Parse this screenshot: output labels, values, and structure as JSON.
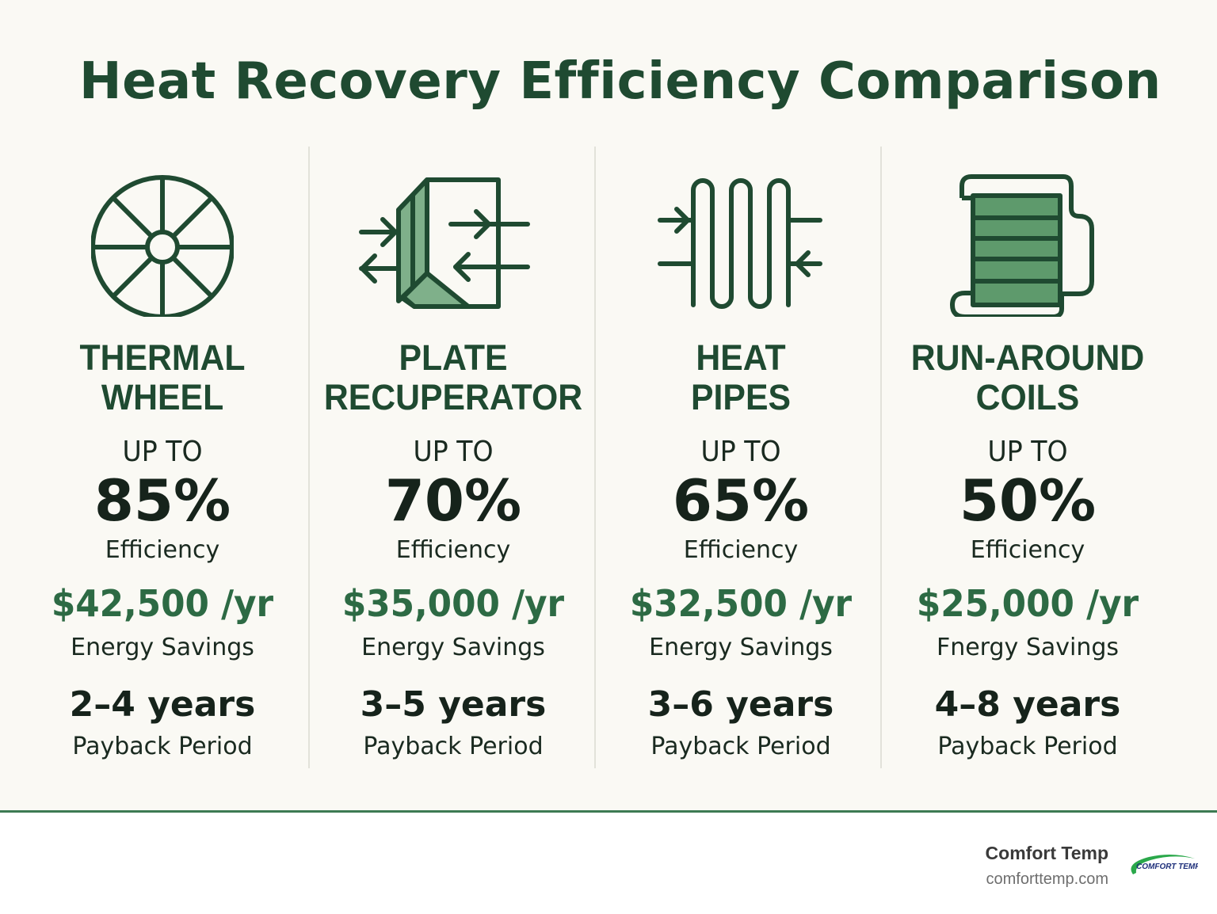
{
  "title": "Heat Recovery Efficiency Comparison",
  "colors": {
    "primary_green": "#1f4a31",
    "accent_green": "#2d6a44",
    "fill_green": "#6fa77a",
    "background": "#faf9f4"
  },
  "columns": [
    {
      "icon": "thermal-wheel-icon",
      "name_line1": "THERMAL",
      "name_line2": "WHEEL",
      "up_to": "UP TO",
      "efficiency": "85%",
      "efficiency_label": "Efficiency",
      "savings": "$42,500 /yr",
      "savings_label": "Energy Savings",
      "payback": "2–4 years",
      "payback_label": "Payback Period"
    },
    {
      "icon": "plate-recuperator-icon",
      "name_line1": "PLATE",
      "name_line2": "RECUPERATOR",
      "up_to": "UP TO",
      "efficiency": "70%",
      "efficiency_label": "Efficiency",
      "savings": "$35,000 /yr",
      "savings_label": "Energy Savings",
      "payback": "3–5 years",
      "payback_label": "Payback Period"
    },
    {
      "icon": "heat-pipes-icon",
      "name_line1": "HEAT",
      "name_line2": "PIPES",
      "up_to": "UP TO",
      "efficiency": "65%",
      "efficiency_label": "Efficiency",
      "savings": "$32,500 /yr",
      "savings_label": "Energy Savings",
      "payback": "3–6 years",
      "payback_label": "Payback Period"
    },
    {
      "icon": "run-around-coils-icon",
      "name_line1": "RUN-AROUND",
      "name_line2": "COILS",
      "up_to": "UP TO",
      "efficiency": "50%",
      "efficiency_label": "Efficiency",
      "savings": "$25,000 /yr",
      "savings_label": "Fnergy Savings",
      "payback": "4–8 years",
      "payback_label": "Payback Period"
    }
  ],
  "footer": {
    "brand": "Comfort Temp",
    "url": "comforttemp.com",
    "logo_text": "COMFORT TEMP"
  }
}
